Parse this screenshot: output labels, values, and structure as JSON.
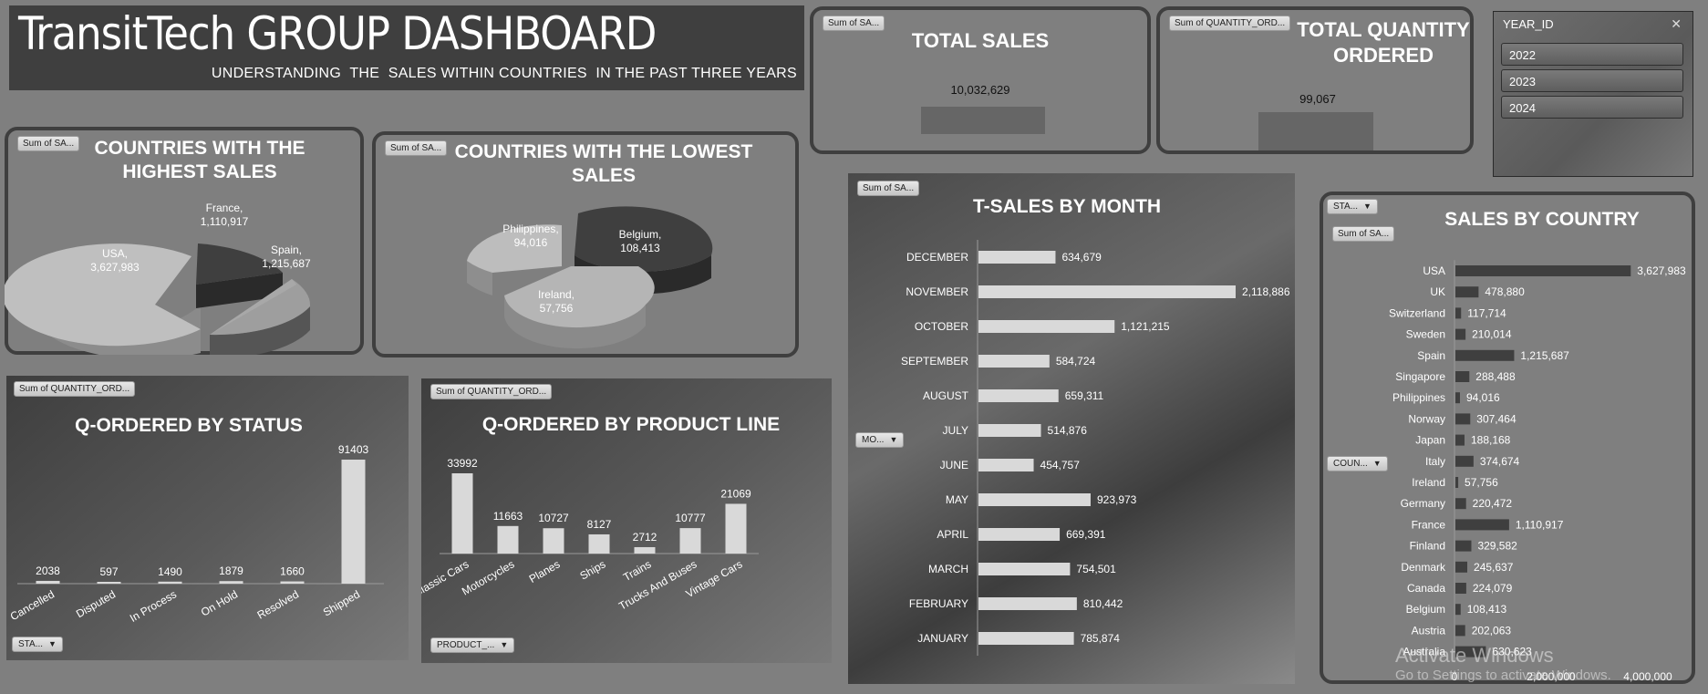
{
  "header": {
    "title": "TransitTech GROUP DASHBOARD",
    "subtitle": "UNDERSTANDING  THE  SALES WITHIN COUNTRIES  IN THE PAST THREE YEARS"
  },
  "kpi": {
    "total_sales": {
      "tag": "Sum of SA...",
      "title": "TOTAL SALES",
      "value": "10,032,629"
    },
    "total_qty": {
      "tag": "Sum of QUANTITY_ORD...",
      "title_line1": "TOTAL QUANTITY",
      "title_line2": "ORDERED",
      "value": "99,067"
    }
  },
  "slicer": {
    "header": "YEAR_ID",
    "clear_icon": "filter-clear-icon",
    "items": [
      "2022",
      "2023",
      "2024"
    ]
  },
  "buttons": {
    "status": "STA...",
    "product": "PRODUCT_...",
    "month": "MO...",
    "country_sta": "STA...",
    "country": "COUN..."
  },
  "tags": {
    "highest": "Sum of SA...",
    "lowest": "Sum of SA...",
    "month": "Sum of SA...",
    "country": "Sum of SA...",
    "status": "Sum of QUANTITY_ORD...",
    "product": "Sum of QUANTITY_ORD..."
  },
  "watermark": {
    "line1": "Activate Windows",
    "line2": "Go to Settings to activate Windows."
  },
  "colors": {
    "background": "#7f7f7f",
    "dark_bar": "#3f3f3f",
    "light_bar": "#d9d9d9"
  },
  "chart_data": [
    {
      "id": "highest",
      "type": "pie",
      "title_line1": "COUNTRIES WITH THE",
      "title_line2": "HIGHEST SALES",
      "slices": [
        {
          "label": "USA",
          "value": 3627983,
          "display": "3,627,983"
        },
        {
          "label": "France",
          "value": 1110917,
          "display": "1,110,917"
        },
        {
          "label": "Spain",
          "value": 1215687,
          "display": "1,215,687"
        }
      ]
    },
    {
      "id": "lowest",
      "type": "pie",
      "title_line1": "COUNTRIES WITH THE LOWEST",
      "title_line2": "SALES",
      "slices": [
        {
          "label": "Philippines",
          "value": 94016,
          "display": "94,016"
        },
        {
          "label": "Belgium",
          "value": 108413,
          "display": "108,413"
        },
        {
          "label": "Ireland",
          "value": 57756,
          "display": "57,756"
        }
      ]
    },
    {
      "id": "status",
      "type": "bar",
      "title": "Q-ORDERED BY STATUS",
      "categories": [
        "Cancelled",
        "Disputed",
        "In Process",
        "On Hold",
        "Resolved",
        "Shipped"
      ],
      "values": [
        2038,
        597,
        1490,
        1879,
        1660,
        91403
      ]
    },
    {
      "id": "product",
      "type": "bar",
      "title": "Q-ORDERED BY PRODUCT LINE",
      "categories": [
        "Classic Cars",
        "Motorcycles",
        "Planes",
        "Ships",
        "Trains",
        "Trucks And Buses",
        "Vintage Cars"
      ],
      "values": [
        33992,
        11663,
        10727,
        8127,
        2712,
        10777,
        21069
      ]
    },
    {
      "id": "month",
      "type": "bar",
      "orientation": "horizontal",
      "title": "T-SALES BY MONTH",
      "categories": [
        "DECEMBER",
        "NOVEMBER",
        "OCTOBER",
        "SEPTEMBER",
        "AUGUST",
        "JULY",
        "JUNE",
        "MAY",
        "APRIL",
        "MARCH",
        "FEBRUARY",
        "JANUARY"
      ],
      "values": [
        634679,
        2118886,
        1121215,
        584724,
        659311,
        514876,
        454757,
        923973,
        669391,
        754501,
        810442,
        785874
      ],
      "labels": [
        "634,679",
        "2,118,886",
        "1,121,215",
        "584,724",
        "659,311",
        "514,876",
        "454,757",
        "923,973",
        "669,391",
        "754,501",
        "810,442",
        "785,874"
      ]
    },
    {
      "id": "country",
      "type": "bar",
      "orientation": "horizontal",
      "title": "SALES BY COUNTRY",
      "categories": [
        "USA",
        "UK",
        "Switzerland",
        "Sweden",
        "Spain",
        "Singapore",
        "Philippines",
        "Norway",
        "Japan",
        "Italy",
        "Ireland",
        "Germany",
        "France",
        "Finland",
        "Denmark",
        "Canada",
        "Belgium",
        "Austria",
        "Australia"
      ],
      "values": [
        3627983,
        478880,
        117714,
        210014,
        1215687,
        288488,
        94016,
        307464,
        188168,
        374674,
        57756,
        220472,
        1110917,
        329582,
        245637,
        224079,
        108413,
        202063,
        630623
      ],
      "labels": [
        "3,627,983",
        "478,880",
        "117,714",
        "210,014",
        "1,215,687",
        "288,488",
        "94,016",
        "307,464",
        "188,168",
        "374,674",
        "57,756",
        "220,472",
        "1,110,917",
        "329,582",
        "245,637",
        "224,079",
        "108,413",
        "202,063",
        "630,623"
      ],
      "xlim": [
        0,
        4000000
      ],
      "xticks": [
        "0",
        "2,000,000",
        "4,000,000"
      ]
    }
  ]
}
